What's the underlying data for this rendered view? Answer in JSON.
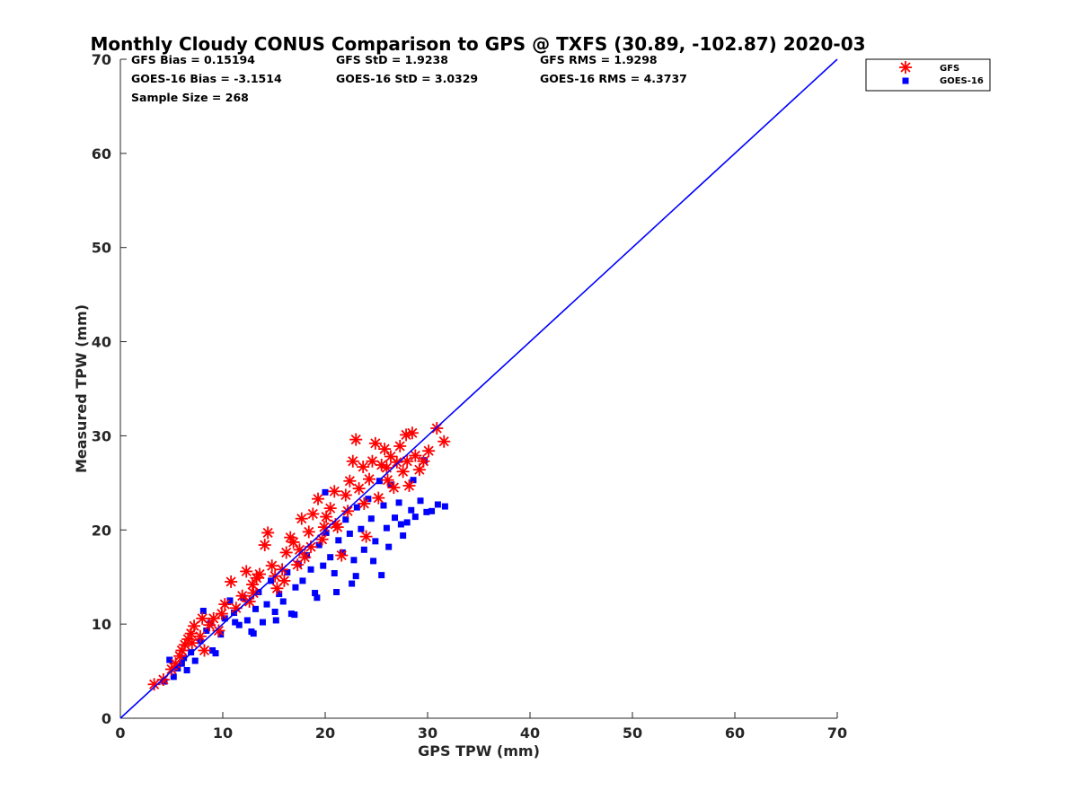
{
  "chart_data": {
    "type": "scatter",
    "title": "Monthly Cloudy CONUS Comparison to GPS @ TXFS (30.89, -102.87) 2020-03",
    "xlabel": "GPS TPW (mm)",
    "ylabel": "Measured TPW (mm)",
    "xlim": [
      0,
      70
    ],
    "ylim": [
      0,
      70
    ],
    "xticks": [
      0,
      10,
      20,
      30,
      40,
      50,
      60,
      70
    ],
    "yticks": [
      0,
      10,
      20,
      30,
      40,
      50,
      60,
      70
    ],
    "grid": false,
    "legend_position": "top-right, outside axes",
    "reference_line": {
      "x": [
        0,
        70
      ],
      "y": [
        0,
        70
      ],
      "color": "#0000ff"
    },
    "stats": [
      [
        "GFS Bias = 0.15194",
        "GFS StD = 1.9238",
        "GFS RMS = 1.9298"
      ],
      [
        "GOES-16 Bias = -3.1514",
        "GOES-16 StD = 3.0329",
        "GOES-16 RMS = 4.3737"
      ],
      [
        "Sample Size = 268"
      ]
    ],
    "series": [
      {
        "name": "GFS",
        "marker": "asterisk",
        "color": "#ff0000",
        "points": [
          [
            3.3,
            3.6
          ],
          [
            4.2,
            4.1
          ],
          [
            5.0,
            5.2
          ],
          [
            5.4,
            5.8
          ],
          [
            5.8,
            6.6
          ],
          [
            6.0,
            7.2
          ],
          [
            6.3,
            7.8
          ],
          [
            6.6,
            8.4
          ],
          [
            6.9,
            9.0
          ],
          [
            7.2,
            9.8
          ],
          [
            7.0,
            8.0
          ],
          [
            7.8,
            8.7
          ],
          [
            8.2,
            7.2
          ],
          [
            8.7,
            9.9
          ],
          [
            9.1,
            10.6
          ],
          [
            9.6,
            9.3
          ],
          [
            10.2,
            12.1
          ],
          [
            10.8,
            14.5
          ],
          [
            11.3,
            11.7
          ],
          [
            11.9,
            13.0
          ],
          [
            12.3,
            15.6
          ],
          [
            12.9,
            14.2
          ],
          [
            13.3,
            14.9
          ],
          [
            13.6,
            15.3
          ],
          [
            14.1,
            18.4
          ],
          [
            14.4,
            19.7
          ],
          [
            14.8,
            16.2
          ],
          [
            15.3,
            13.8
          ],
          [
            15.8,
            15.8
          ],
          [
            16.2,
            17.6
          ],
          [
            16.6,
            19.2
          ],
          [
            16.9,
            18.7
          ],
          [
            17.3,
            16.3
          ],
          [
            17.7,
            21.2
          ],
          [
            18.0,
            17.1
          ],
          [
            18.4,
            19.8
          ],
          [
            18.8,
            21.7
          ],
          [
            19.3,
            23.3
          ],
          [
            19.7,
            19.0
          ],
          [
            20.1,
            21.4
          ],
          [
            20.5,
            22.3
          ],
          [
            20.9,
            24.1
          ],
          [
            21.2,
            20.3
          ],
          [
            21.6,
            17.3
          ],
          [
            22.0,
            23.7
          ],
          [
            22.4,
            25.2
          ],
          [
            22.7,
            27.3
          ],
          [
            23.0,
            29.6
          ],
          [
            23.3,
            24.4
          ],
          [
            23.7,
            26.7
          ],
          [
            24.0,
            19.3
          ],
          [
            24.3,
            25.4
          ],
          [
            24.6,
            27.3
          ],
          [
            24.9,
            29.2
          ],
          [
            25.2,
            23.4
          ],
          [
            25.5,
            26.9
          ],
          [
            25.8,
            28.6
          ],
          [
            26.1,
            25.3
          ],
          [
            26.4,
            27.8
          ],
          [
            26.7,
            24.5
          ],
          [
            27.0,
            27.2
          ],
          [
            27.3,
            28.9
          ],
          [
            27.6,
            26.2
          ],
          [
            27.9,
            30.1
          ],
          [
            28.2,
            24.7
          ],
          [
            28.5,
            30.3
          ],
          [
            28.8,
            27.9
          ],
          [
            29.2,
            26.4
          ],
          [
            29.6,
            27.3
          ],
          [
            30.1,
            28.4
          ],
          [
            30.9,
            30.8
          ],
          [
            31.6,
            29.4
          ],
          [
            13.0,
            13.3
          ],
          [
            16.0,
            14.6
          ],
          [
            18.6,
            18.2
          ],
          [
            21.0,
            20.6
          ],
          [
            23.8,
            22.8
          ],
          [
            26.0,
            26.6
          ],
          [
            28.0,
            27.3
          ],
          [
            22.2,
            22.0
          ],
          [
            19.9,
            20.3
          ],
          [
            17.5,
            17.9
          ],
          [
            15.1,
            15.1
          ],
          [
            12.6,
            12.4
          ],
          [
            9.9,
            11.1
          ],
          [
            8.0,
            10.6
          ]
        ]
      },
      {
        "name": "GOES-16",
        "marker": "square",
        "color": "#0000ff",
        "points": [
          [
            4.3,
            3.9
          ],
          [
            4.8,
            6.2
          ],
          [
            5.2,
            4.4
          ],
          [
            5.6,
            5.3
          ],
          [
            6.0,
            5.8
          ],
          [
            6.2,
            6.4
          ],
          [
            6.5,
            5.1
          ],
          [
            6.9,
            7.0
          ],
          [
            7.3,
            6.1
          ],
          [
            7.8,
            8.2
          ],
          [
            8.1,
            11.4
          ],
          [
            8.4,
            9.3
          ],
          [
            8.8,
            10.1
          ],
          [
            9.3,
            6.9
          ],
          [
            9.8,
            8.9
          ],
          [
            10.2,
            10.6
          ],
          [
            10.7,
            12.5
          ],
          [
            11.1,
            11.2
          ],
          [
            11.6,
            9.9
          ],
          [
            12.0,
            12.8
          ],
          [
            12.4,
            10.4
          ],
          [
            12.8,
            9.2
          ],
          [
            13.2,
            11.6
          ],
          [
            13.5,
            13.4
          ],
          [
            13.9,
            10.2
          ],
          [
            14.3,
            12.1
          ],
          [
            14.7,
            14.6
          ],
          [
            15.1,
            11.3
          ],
          [
            15.5,
            13.2
          ],
          [
            15.9,
            12.4
          ],
          [
            16.3,
            15.5
          ],
          [
            16.7,
            11.1
          ],
          [
            17.1,
            13.9
          ],
          [
            17.4,
            16.4
          ],
          [
            17.8,
            14.6
          ],
          [
            18.2,
            17.3
          ],
          [
            18.6,
            15.8
          ],
          [
            19.0,
            13.3
          ],
          [
            19.4,
            18.4
          ],
          [
            19.8,
            16.2
          ],
          [
            20.1,
            19.7
          ],
          [
            20.5,
            17.1
          ],
          [
            20.9,
            15.4
          ],
          [
            21.3,
            18.9
          ],
          [
            21.7,
            17.6
          ],
          [
            22.0,
            21.1
          ],
          [
            22.4,
            19.6
          ],
          [
            22.8,
            16.8
          ],
          [
            23.1,
            22.4
          ],
          [
            23.5,
            20.1
          ],
          [
            23.8,
            17.9
          ],
          [
            24.2,
            23.3
          ],
          [
            24.5,
            21.2
          ],
          [
            24.9,
            18.8
          ],
          [
            25.3,
            25.2
          ],
          [
            25.7,
            22.6
          ],
          [
            26.0,
            20.2
          ],
          [
            26.4,
            24.8
          ],
          [
            26.8,
            21.3
          ],
          [
            27.2,
            22.9
          ],
          [
            27.6,
            19.4
          ],
          [
            28.0,
            20.8
          ],
          [
            28.4,
            22.1
          ],
          [
            28.8,
            21.4
          ],
          [
            29.3,
            23.1
          ],
          [
            29.9,
            21.9
          ],
          [
            30.4,
            22.0
          ],
          [
            31.0,
            22.7
          ],
          [
            31.7,
            22.5
          ],
          [
            22.6,
            14.3
          ],
          [
            24.7,
            16.7
          ],
          [
            26.2,
            18.2
          ],
          [
            20.0,
            24.0
          ],
          [
            23.0,
            15.1
          ],
          [
            25.5,
            15.2
          ],
          [
            27.4,
            20.6
          ],
          [
            29.7,
            27.4
          ],
          [
            28.6,
            25.3
          ],
          [
            21.1,
            13.4
          ],
          [
            19.2,
            12.8
          ],
          [
            17.0,
            11.0
          ],
          [
            15.2,
            10.4
          ],
          [
            13.0,
            9.0
          ],
          [
            11.2,
            10.2
          ],
          [
            9.0,
            7.2
          ]
        ]
      }
    ]
  }
}
